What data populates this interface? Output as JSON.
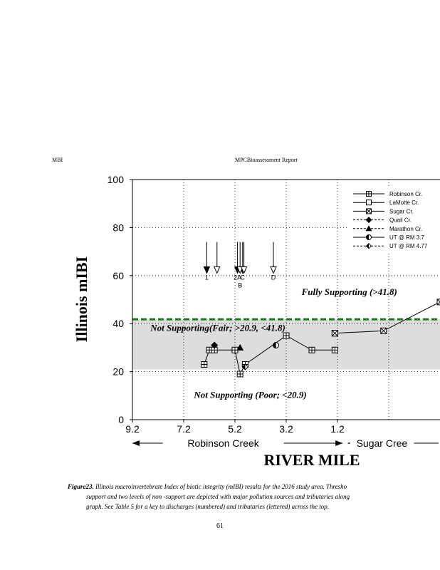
{
  "header": {
    "left": "MBI",
    "center": "MPCBioassessment Report"
  },
  "chart_data": {
    "type": "line",
    "ylabel": "Illinois mIBI",
    "xlabel": "RIVER MILE",
    "xlim": [
      9.2,
      -2.8
    ],
    "ylim": [
      0,
      100
    ],
    "x_reversed": true,
    "xticks": [
      9.2,
      7.2,
      5.2,
      3.2,
      1.2
    ],
    "xtick_labels": [
      "9.2",
      "7.2",
      "5.2",
      "3.2",
      "1.2"
    ],
    "yticks": [
      0,
      20,
      40,
      60,
      80,
      100
    ],
    "ytick_labels": [
      "0",
      "20",
      "40",
      "60",
      "80",
      "100"
    ],
    "grid": true,
    "legend_position": "top-right",
    "fair_band": [
      20.9,
      41.8
    ],
    "full_support_threshold": 41.8,
    "zones": [
      {
        "label": "Fully Supporting   (>41.8)",
        "x": 2.6,
        "y": 52
      },
      {
        "label": "Not Supporting(Fair;   >20.9,  <41.8)",
        "x": 8.5,
        "y": 37
      },
      {
        "label": "Not Supporting   (Poor;  <20.9)",
        "x": 6.8,
        "y": 9
      }
    ],
    "reaches": [
      {
        "label": "Robinson   Creek",
        "from": 9.2,
        "to": 1.0
      },
      {
        "label": "Sugar   Cree",
        "from": 0.8,
        "to": -2.8
      }
    ],
    "series": [
      {
        "name": "Robinson   Cr.",
        "marker": "square-plus",
        "line": "solid",
        "x": [
          6.4,
          6.2,
          6.0,
          5.2,
          5.0,
          4.8,
          3.2,
          2.2,
          1.3
        ],
        "y": [
          23,
          29,
          29,
          29,
          19,
          23,
          35,
          29,
          29
        ]
      },
      {
        "name": "LaMotte    Cr.",
        "marker": "square",
        "line": "solid",
        "x": [
          1.3
        ],
        "y": [
          36
        ]
      },
      {
        "name": "Sugar   Cr.",
        "marker": "square-x",
        "line": "solid",
        "x": [
          1.3,
          -0.6,
          -2.8
        ],
        "y": [
          36,
          37,
          49
        ]
      },
      {
        "name": "Quail   Cr.",
        "marker": "diamond",
        "line": "dashed",
        "x": [
          6.0
        ],
        "y": [
          31
        ]
      },
      {
        "name": "Marathon    Cr.",
        "marker": "triangle",
        "line": "dashed",
        "x": [
          5.0
        ],
        "y": [
          30
        ]
      },
      {
        "name": "UT  @  RM   3.7",
        "marker": "half-circle",
        "line": "solid",
        "x": [
          3.6
        ],
        "y": [
          31
        ]
      },
      {
        "name": "UT  @  RM   4.77",
        "marker": "half-diamond",
        "line": "dashed",
        "x": [
          4.8
        ],
        "y": [
          22
        ]
      }
    ],
    "discharges": [
      {
        "label": "1",
        "x": 6.3,
        "type": "filled"
      },
      {
        "label": "",
        "x": 5.9,
        "type": "open"
      },
      {
        "label": "2A",
        "x": 5.1,
        "type": "filled"
      },
      {
        "label": "C",
        "x": 4.9,
        "type": "filled"
      },
      {
        "label": "B",
        "x": 5.0,
        "type": "open"
      },
      {
        "label": "",
        "x": 4.85,
        "type": "open"
      },
      {
        "label": "D",
        "x": 3.7,
        "type": "open"
      }
    ]
  },
  "caption": {
    "figure_label": "Figure23.",
    "line1": " Illinois macroinvertebrate  Index of biotic integrity  (mIBI) results for the  2016 study area. Thresho",
    "line2": "support   and  two   levels  of  non -support  are  depicted  with  major  pollution  sources  and tributaries  along",
    "line3": "graph.    See  Table   5  for  a  key   to  discharges    (numbered)      and  tributaries    (lettered)    across   the  top."
  },
  "page_number": "61"
}
